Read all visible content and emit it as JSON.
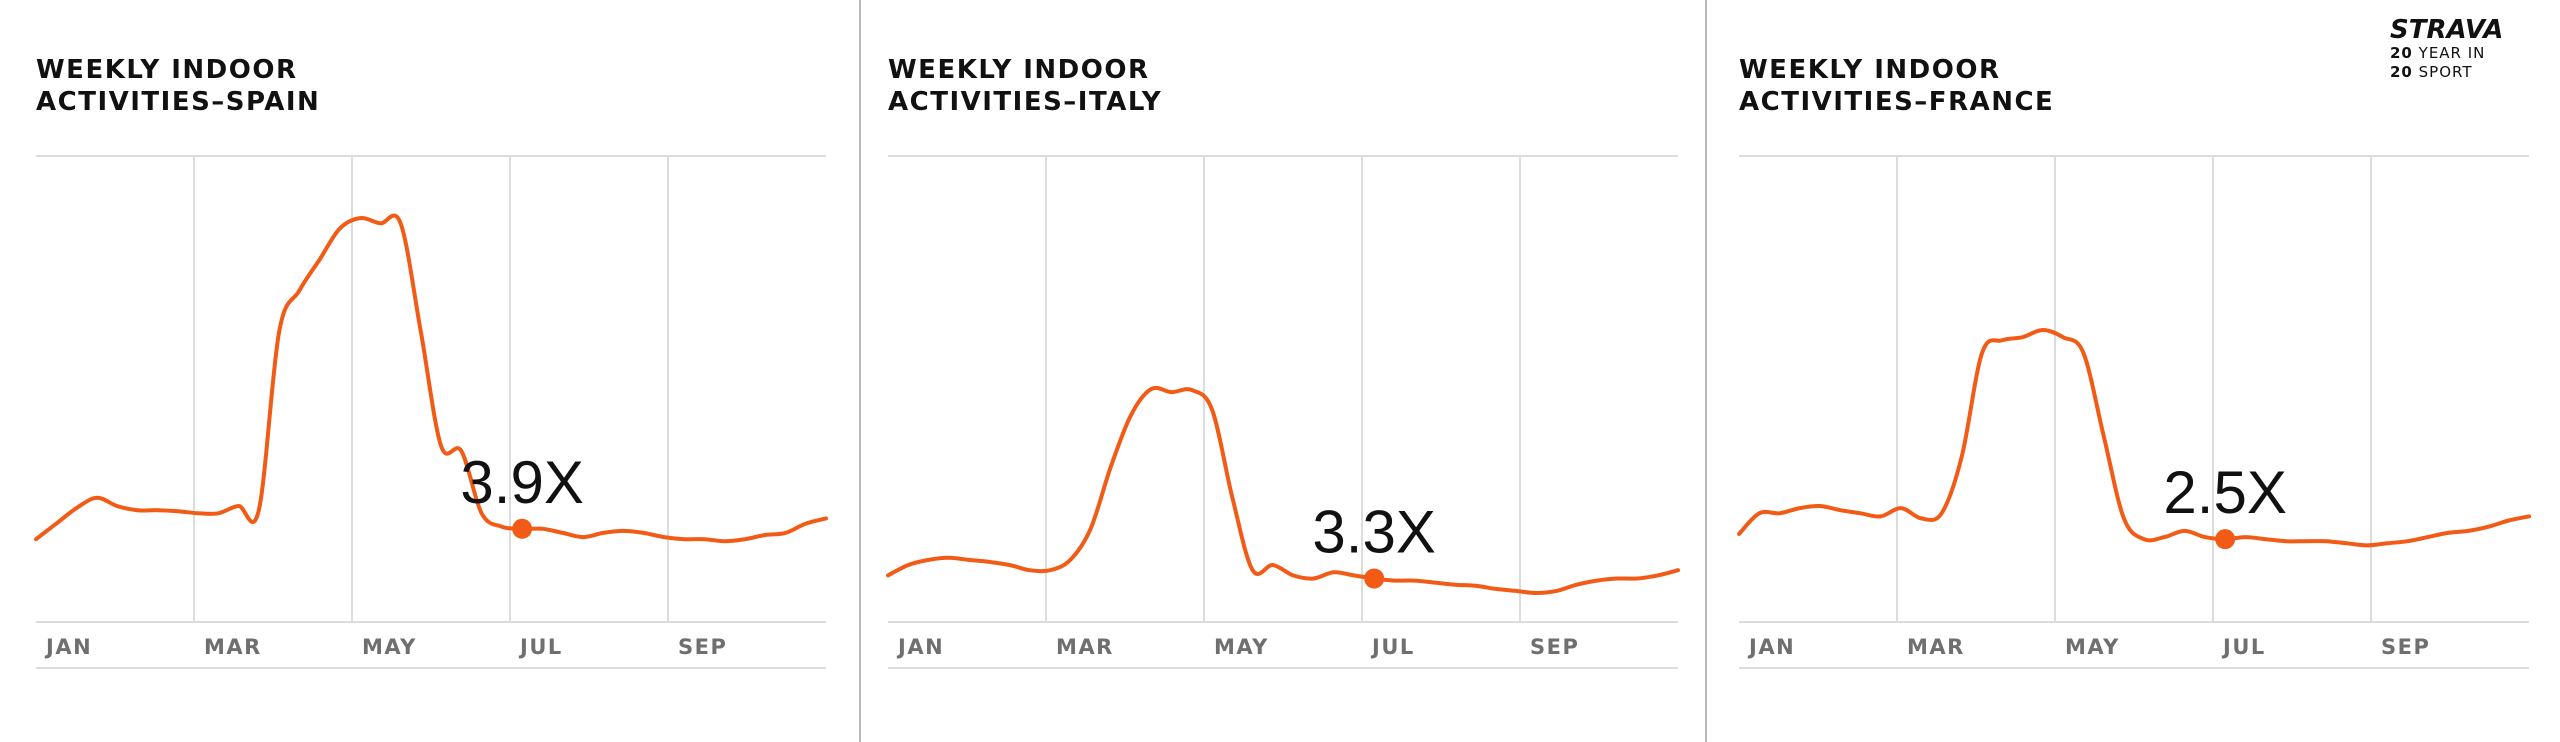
{
  "brand": {
    "logo": "STRAVA",
    "line1_num": "20",
    "line1_text": "YEAR IN",
    "line2_num": "20",
    "line2_text": "SPORT"
  },
  "colors": {
    "line": "#f25b16",
    "grid": "#dcdcdc",
    "tick": "#6f6f6f",
    "divider": "#b9b9b9"
  },
  "chart_data": [
    {
      "type": "line",
      "title_lines": [
        "WEEKLY INDOOR",
        "ACTIVITIES–SPAIN"
      ],
      "x_ticks": [
        "JAN",
        "MAR",
        "MAY",
        "JUL",
        "SEP"
      ],
      "annotation": "3.9X",
      "peak_index": 24,
      "ylim": [
        0,
        4.5
      ],
      "values": [
        0.8,
        0.95,
        1.1,
        1.2,
        1.12,
        1.08,
        1.08,
        1.07,
        1.05,
        1.05,
        1.12,
        1.08,
        2.8,
        3.2,
        3.5,
        3.8,
        3.9,
        3.85,
        3.85,
        2.8,
        1.7,
        1.65,
        1.05,
        0.92,
        0.9,
        0.9,
        0.86,
        0.82,
        0.86,
        0.88,
        0.86,
        0.82,
        0.8,
        0.8,
        0.78,
        0.8,
        0.84,
        0.86,
        0.95,
        1.0
      ]
    },
    {
      "type": "line",
      "title_lines": [
        "WEEKLY INDOOR",
        "ACTIVITIES–ITALY"
      ],
      "x_ticks": [
        "JAN",
        "MAR",
        "MAY",
        "JUL",
        "SEP"
      ],
      "annotation": "3.3X",
      "peak_index": 24,
      "ylim": [
        0,
        4.5
      ],
      "values": [
        0.45,
        0.55,
        0.6,
        0.62,
        0.6,
        0.58,
        0.55,
        0.5,
        0.5,
        0.6,
        0.9,
        1.5,
        2.0,
        2.25,
        2.22,
        2.24,
        2.05,
        1.2,
        0.5,
        0.55,
        0.45,
        0.42,
        0.48,
        0.45,
        0.42,
        0.4,
        0.4,
        0.38,
        0.36,
        0.35,
        0.32,
        0.3,
        0.28,
        0.3,
        0.36,
        0.4,
        0.42,
        0.42,
        0.45,
        0.5
      ]
    },
    {
      "type": "line",
      "title_lines": [
        "WEEKLY INDOOR",
        "ACTIVITIES–FRANCE"
      ],
      "x_ticks": [
        "JAN",
        "MAR",
        "MAY",
        "JUL",
        "SEP"
      ],
      "annotation": "2.5X",
      "peak_index": 24,
      "ylim": [
        0,
        4.5
      ],
      "values": [
        0.85,
        1.05,
        1.05,
        1.1,
        1.12,
        1.08,
        1.05,
        1.02,
        1.1,
        1.0,
        1.05,
        1.6,
        2.6,
        2.72,
        2.75,
        2.82,
        2.75,
        2.6,
        1.8,
        1.0,
        0.8,
        0.82,
        0.88,
        0.82,
        0.8,
        0.82,
        0.8,
        0.78,
        0.78,
        0.78,
        0.76,
        0.74,
        0.76,
        0.78,
        0.82,
        0.86,
        0.88,
        0.92,
        0.98,
        1.02
      ]
    }
  ]
}
